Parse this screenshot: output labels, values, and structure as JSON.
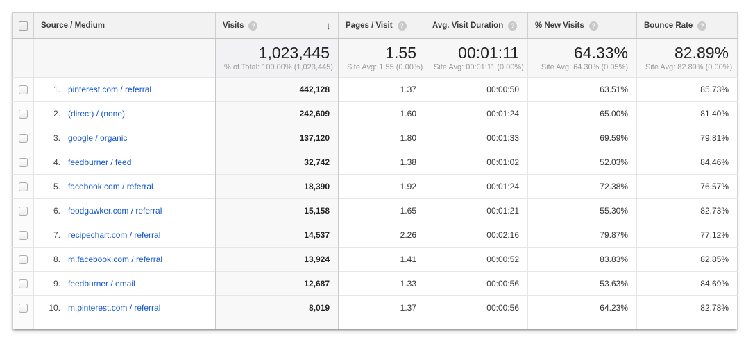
{
  "icons": {
    "help": "?",
    "sort_desc": "↓"
  },
  "colors": {
    "link": "#1155cc",
    "header_bg": "#f2f2f2",
    "sorted_column_bg": "#f8f8f9"
  },
  "table": {
    "columns": [
      {
        "key": "source",
        "label": "Source / Medium",
        "has_help": false
      },
      {
        "key": "visits",
        "label": "Visits",
        "has_help": true,
        "sorted": "desc"
      },
      {
        "key": "pages",
        "label": "Pages / Visit",
        "has_help": true
      },
      {
        "key": "duration",
        "label": "Avg. Visit Duration",
        "has_help": true
      },
      {
        "key": "new_visits",
        "label": "% New Visits",
        "has_help": true
      },
      {
        "key": "bounce",
        "label": "Bounce Rate",
        "has_help": true
      }
    ],
    "summary": {
      "visits": "1,023,445",
      "visits_sub": "% of Total: 100.00% (1,023,445)",
      "pages": "1.55",
      "pages_sub": "Site Avg: 1.55 (0.00%)",
      "duration": "00:01:11",
      "duration_sub": "Site Avg: 00:01:11 (0.00%)",
      "new_visits": "64.33%",
      "new_visits_sub": "Site Avg: 64.30% (0.05%)",
      "bounce": "82.89%",
      "bounce_sub": "Site Avg: 82.89% (0.00%)"
    },
    "rows": [
      {
        "index": "1.",
        "source": "pinterest.com / referral",
        "visits": "442,128",
        "pages": "1.37",
        "duration": "00:00:50",
        "new_visits": "63.51%",
        "bounce": "85.73%"
      },
      {
        "index": "2.",
        "source": "(direct) / (none)",
        "visits": "242,609",
        "pages": "1.60",
        "duration": "00:01:24",
        "new_visits": "65.00%",
        "bounce": "81.40%"
      },
      {
        "index": "3.",
        "source": "google / organic",
        "visits": "137,120",
        "pages": "1.80",
        "duration": "00:01:33",
        "new_visits": "69.59%",
        "bounce": "79.81%"
      },
      {
        "index": "4.",
        "source": "feedburner / feed",
        "visits": "32,742",
        "pages": "1.38",
        "duration": "00:01:02",
        "new_visits": "52.03%",
        "bounce": "84.46%"
      },
      {
        "index": "5.",
        "source": "facebook.com / referral",
        "visits": "18,390",
        "pages": "1.92",
        "duration": "00:01:24",
        "new_visits": "72.38%",
        "bounce": "76.57%"
      },
      {
        "index": "6.",
        "source": "foodgawker.com / referral",
        "visits": "15,158",
        "pages": "1.65",
        "duration": "00:01:21",
        "new_visits": "55.30%",
        "bounce": "82.73%"
      },
      {
        "index": "7.",
        "source": "recipechart.com / referral",
        "visits": "14,537",
        "pages": "2.26",
        "duration": "00:02:16",
        "new_visits": "79.87%",
        "bounce": "77.12%"
      },
      {
        "index": "8.",
        "source": "m.facebook.com / referral",
        "visits": "13,924",
        "pages": "1.41",
        "duration": "00:00:52",
        "new_visits": "83.83%",
        "bounce": "82.85%"
      },
      {
        "index": "9.",
        "source": "feedburner / email",
        "visits": "12,687",
        "pages": "1.33",
        "duration": "00:00:56",
        "new_visits": "53.63%",
        "bounce": "84.69%"
      },
      {
        "index": "10.",
        "source": "m.pinterest.com / referral",
        "visits": "8,019",
        "pages": "1.37",
        "duration": "00:00:56",
        "new_visits": "64.23%",
        "bounce": "82.78%"
      }
    ]
  }
}
